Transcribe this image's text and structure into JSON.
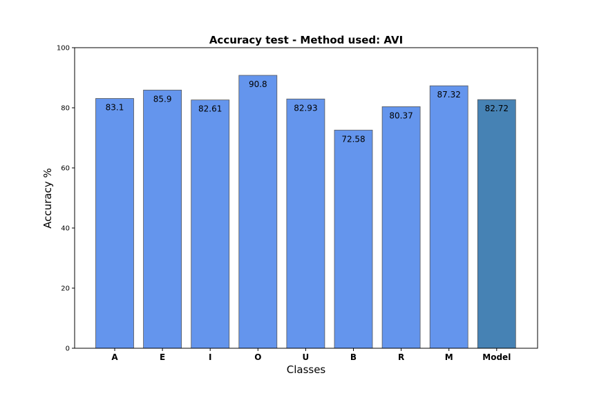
{
  "chart_data": {
    "type": "bar",
    "title": "Accuracy test - Method used: AVI",
    "xlabel": "Classes",
    "ylabel": "Accuracy %",
    "ylim": [
      0,
      100
    ],
    "yticks": [
      0,
      20,
      40,
      60,
      80,
      100
    ],
    "categories": [
      "A",
      "E",
      "I",
      "O",
      "U",
      "B",
      "R",
      "M",
      "Model"
    ],
    "values": [
      83.1,
      85.9,
      82.61,
      90.8,
      82.93,
      72.58,
      80.37,
      87.32,
      82.72
    ],
    "colors": {
      "bar": "#6495ED",
      "highlight_bar": "#4682B4",
      "bar_edge": "#555555",
      "axis": "#000000"
    },
    "highlight_category": "Model",
    "grid": false,
    "legend": "none"
  }
}
